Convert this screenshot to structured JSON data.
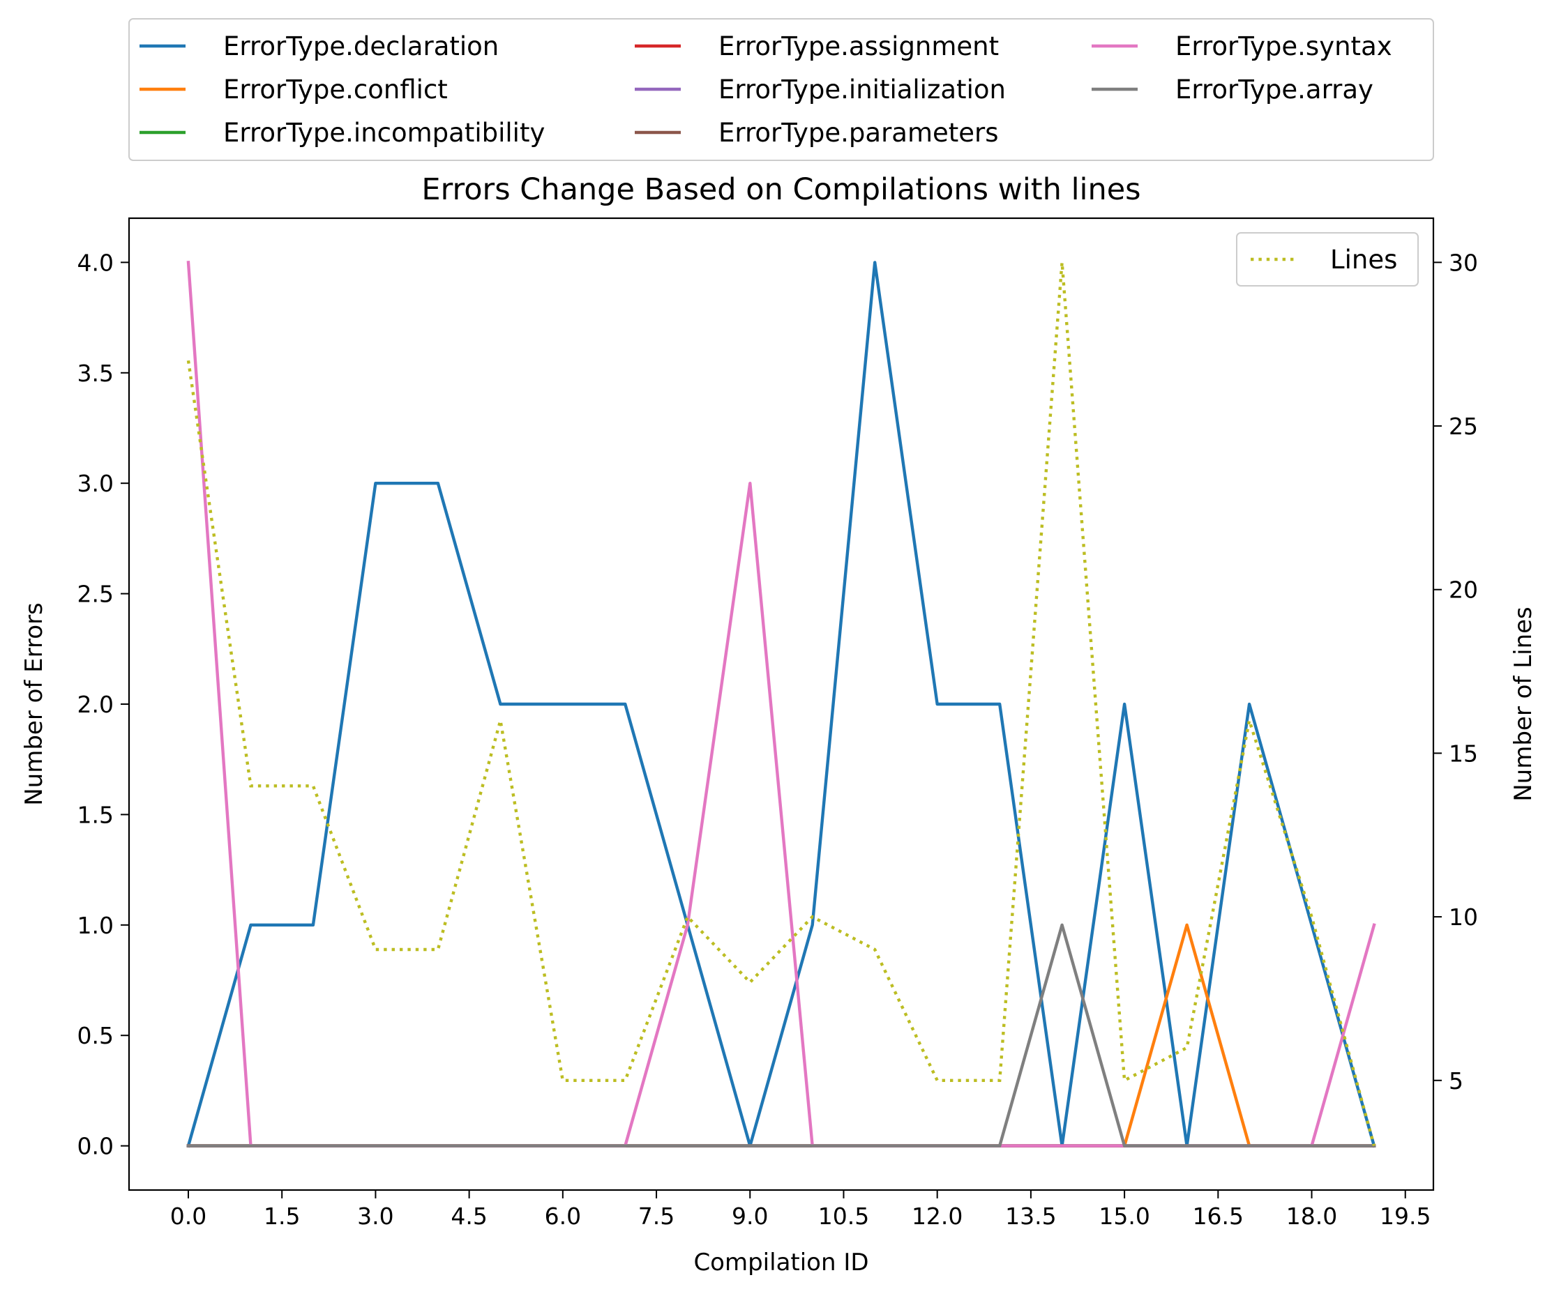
{
  "chart_data": {
    "type": "line",
    "title": "Errors Change Based on Compilations with lines",
    "xlabel": "Compilation ID",
    "ylabel": "Number of Errors",
    "y2label": "Number of Lines",
    "xlim": [
      -0.95,
      19.95
    ],
    "ylim": [
      -0.2,
      4.2
    ],
    "y2lim": [
      1.65,
      31.35
    ],
    "x_ticks": [
      "0.0",
      "1.5",
      "3.0",
      "4.5",
      "6.0",
      "7.5",
      "9.0",
      "10.5",
      "12.0",
      "13.5",
      "15.0",
      "16.5",
      "18.0",
      "19.5"
    ],
    "y_ticks": [
      "0.0",
      "0.5",
      "1.0",
      "1.5",
      "2.0",
      "2.5",
      "3.0",
      "3.5",
      "4.0"
    ],
    "y2_ticks": [
      "5",
      "10",
      "15",
      "20",
      "25",
      "30"
    ],
    "grid": false,
    "legend_placement": "above plot, 3 columns",
    "x": [
      0,
      1,
      2,
      3,
      4,
      5,
      6,
      7,
      8,
      9,
      10,
      11,
      12,
      13,
      14,
      15,
      16,
      17,
      18,
      19
    ],
    "series": [
      {
        "name": "ErrorType.declaration",
        "color": "#1f77b4",
        "values": [
          0,
          1,
          1,
          3,
          3,
          2,
          2,
          2,
          1,
          0,
          1,
          4,
          2,
          2,
          0,
          2,
          0,
          2,
          1,
          0
        ]
      },
      {
        "name": "ErrorType.conflict",
        "color": "#ff7f0e",
        "values": [
          0,
          0,
          0,
          0,
          0,
          0,
          0,
          0,
          0,
          0,
          0,
          0,
          0,
          0,
          0,
          0,
          1,
          0,
          0,
          0
        ]
      },
      {
        "name": "ErrorType.incompatibility",
        "color": "#2ca02c",
        "values": [
          0,
          0,
          0,
          0,
          0,
          0,
          0,
          0,
          0,
          0,
          0,
          0,
          0,
          0,
          0,
          0,
          0,
          0,
          0,
          0
        ]
      },
      {
        "name": "ErrorType.assignment",
        "color": "#d62728",
        "values": [
          0,
          0,
          0,
          0,
          0,
          0,
          0,
          0,
          0,
          0,
          0,
          0,
          0,
          0,
          0,
          0,
          0,
          0,
          0,
          0
        ]
      },
      {
        "name": "ErrorType.initialization",
        "color": "#9467bd",
        "values": [
          0,
          0,
          0,
          0,
          0,
          0,
          0,
          0,
          0,
          0,
          0,
          0,
          0,
          0,
          0,
          0,
          0,
          0,
          0,
          0
        ]
      },
      {
        "name": "ErrorType.parameters",
        "color": "#8c564b",
        "values": [
          0,
          0,
          0,
          0,
          0,
          0,
          0,
          0,
          0,
          0,
          0,
          0,
          0,
          0,
          0,
          0,
          0,
          0,
          0,
          0
        ]
      },
      {
        "name": "ErrorType.syntax",
        "color": "#e377c2",
        "values": [
          4,
          0,
          0,
          0,
          0,
          0,
          0,
          0,
          1,
          3,
          0,
          0,
          0,
          0,
          0,
          0,
          0,
          0,
          0,
          1
        ]
      },
      {
        "name": "ErrorType.array",
        "color": "#7f7f7f",
        "values": [
          0,
          0,
          0,
          0,
          0,
          0,
          0,
          0,
          0,
          0,
          0,
          0,
          0,
          0,
          1,
          0,
          0,
          0,
          0,
          0
        ]
      }
    ],
    "lines_series": {
      "name": "Lines",
      "color": "#bcbd22",
      "style": "dotted",
      "axis": "right",
      "values": [
        27,
        14,
        14,
        9,
        9,
        16,
        5,
        5,
        10,
        8,
        10,
        9,
        5,
        5,
        30,
        5,
        6,
        16,
        10,
        3
      ]
    }
  }
}
